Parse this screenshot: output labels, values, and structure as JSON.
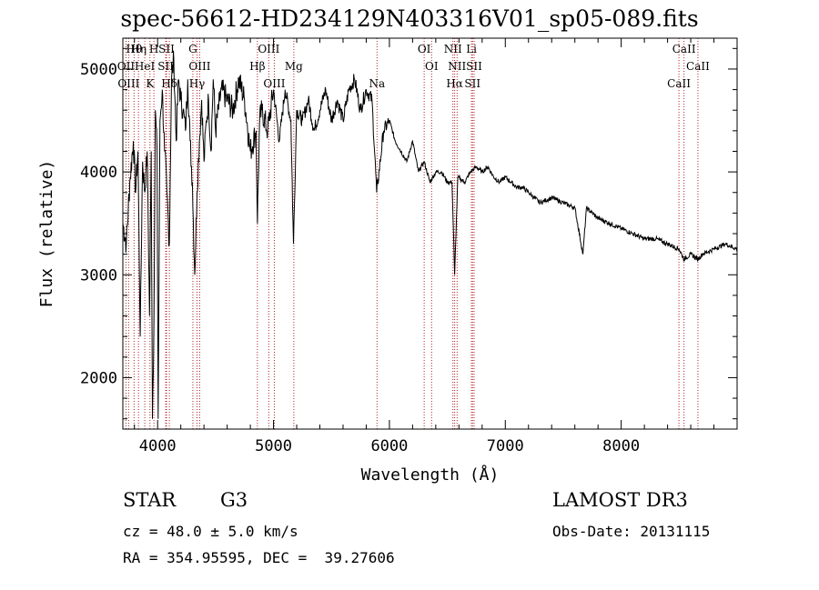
{
  "chart_data": {
    "type": "line",
    "title": "spec-56612-HD234129N403316V01_sp05-089.fits",
    "xlabel": "Wavelength (Å)",
    "ylabel": "Flux (relative)",
    "xlim": [
      3700,
      9000
    ],
    "ylim": [
      1500,
      5300
    ],
    "x_ticks": [
      4000,
      5000,
      6000,
      7000,
      8000
    ],
    "y_ticks": [
      2000,
      3000,
      4000,
      5000
    ],
    "x_tick_labels": [
      "4000",
      "5000",
      "6000",
      "7000",
      "8000"
    ],
    "y_tick_labels": [
      "2000",
      "3000",
      "4000",
      "5000"
    ],
    "series": [
      {
        "name": "flux",
        "x": [
          3700,
          3730,
          3760,
          3790,
          3810,
          3830,
          3850,
          3870,
          3890,
          3910,
          3930,
          3945,
          3955,
          3968,
          3980,
          3995,
          4005,
          4020,
          4040,
          4060,
          4080,
          4101,
          4120,
          4140,
          4160,
          4180,
          4200,
          4220,
          4240,
          4260,
          4280,
          4300,
          4320,
          4340,
          4360,
          4380,
          4400,
          4420,
          4440,
          4460,
          4480,
          4500,
          4550,
          4600,
          4650,
          4700,
          4750,
          4800,
          4850,
          4861,
          4880,
          4900,
          4950,
          5000,
          5050,
          5100,
          5150,
          5172,
          5200,
          5250,
          5300,
          5350,
          5400,
          5450,
          5500,
          5550,
          5600,
          5650,
          5700,
          5750,
          5800,
          5850,
          5890,
          5950,
          6000,
          6050,
          6100,
          6150,
          6200,
          6250,
          6300,
          6350,
          6400,
          6450,
          6500,
          6540,
          6563,
          6590,
          6650,
          6700,
          6750,
          6800,
          6850,
          6900,
          6950,
          7000,
          7050,
          7100,
          7150,
          7200,
          7300,
          7400,
          7500,
          7600,
          7670,
          7700,
          7800,
          7900,
          8000,
          8100,
          8200,
          8300,
          8400,
          8500,
          8542,
          8600,
          8662,
          8700,
          8800,
          8900,
          9000
        ],
        "values": [
          3500,
          3300,
          3900,
          4300,
          3800,
          4200,
          2400,
          4100,
          3800,
          4200,
          2600,
          4200,
          1600,
          2500,
          4600,
          4200,
          1600,
          4500,
          4800,
          4200,
          3800,
          3300,
          4900,
          5100,
          4300,
          4900,
          4700,
          4600,
          4400,
          4900,
          4300,
          3900,
          3000,
          3800,
          4300,
          4700,
          4100,
          4500,
          4700,
          4200,
          4900,
          4400,
          4800,
          4700,
          4600,
          4900,
          4700,
          4200,
          4400,
          3500,
          4500,
          4600,
          4400,
          4800,
          4300,
          4800,
          4500,
          3300,
          4600,
          4500,
          4700,
          4400,
          4600,
          4800,
          4500,
          4700,
          4500,
          4800,
          4900,
          4600,
          4800,
          4700,
          3800,
          4400,
          4500,
          4300,
          4200,
          4100,
          4300,
          4000,
          4100,
          3900,
          4000,
          4000,
          3900,
          3900,
          3000,
          3950,
          3900,
          4000,
          4050,
          4000,
          4050,
          3950,
          3900,
          3950,
          3900,
          3850,
          3850,
          3800,
          3700,
          3750,
          3700,
          3650,
          3200,
          3650,
          3550,
          3500,
          3450,
          3400,
          3350,
          3350,
          3300,
          3250,
          3150,
          3200,
          3150,
          3200,
          3250,
          3300,
          3250
        ]
      }
    ],
    "line_markers": [
      {
        "label": "Hθ",
        "wavelength": 3797
      },
      {
        "label": "OII",
        "wavelength": 3727
      },
      {
        "label": "OIII",
        "wavelength": 3750
      },
      {
        "label": "Hη",
        "wavelength": 3835
      },
      {
        "label": "HeI",
        "wavelength": 3889
      },
      {
        "label": "K",
        "wavelength": 3934
      },
      {
        "label": "H",
        "wavelength": 3968
      },
      {
        "label": "SII",
        "wavelength": 4070
      },
      {
        "label": "Hδ",
        "wavelength": 4101
      },
      {
        "label": "SII",
        "wavelength": 4077
      },
      {
        "label": "OIII",
        "wavelength": 4363
      },
      {
        "label": "Hγ",
        "wavelength": 4340
      },
      {
        "label": "G",
        "wavelength": 4304
      },
      {
        "label": "Hβ",
        "wavelength": 4861
      },
      {
        "label": "OIII",
        "wavelength": 5007
      },
      {
        "label": "OIII",
        "wavelength": 4959
      },
      {
        "label": "Mg",
        "wavelength": 5175
      },
      {
        "label": "Na",
        "wavelength": 5893
      },
      {
        "label": "OI",
        "wavelength": 6300
      },
      {
        "label": "OI",
        "wavelength": 6364
      },
      {
        "label": "Hα",
        "wavelength": 6563
      },
      {
        "label": "NII",
        "wavelength": 6548
      },
      {
        "label": "NII",
        "wavelength": 6584
      },
      {
        "label": "SII",
        "wavelength": 6717
      },
      {
        "label": "Li",
        "wavelength": 6708
      },
      {
        "label": "SII",
        "wavelength": 6731
      },
      {
        "label": "CaII",
        "wavelength": 8498
      },
      {
        "label": "CaII",
        "wavelength": 8542
      },
      {
        "label": "CaII",
        "wavelength": 8662
      }
    ],
    "marker_color": "#b22222",
    "line_color": "#000000"
  },
  "info": {
    "object_type": "STAR",
    "subclass": "G3",
    "survey": "LAMOST DR3",
    "cz": "cz = 48.0 ± 5.0 km/s",
    "obs_date": "Obs-Date: 20131115",
    "coords": "RA = 354.95595, DEC =  39.27606"
  }
}
